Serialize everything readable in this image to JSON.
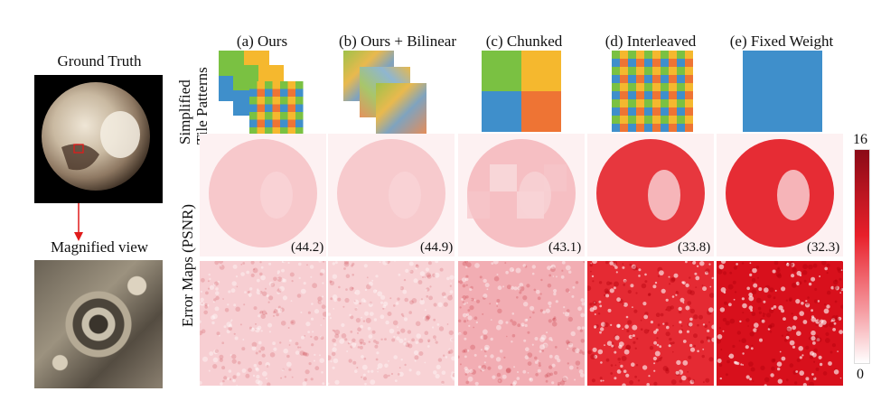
{
  "left_panel": {
    "ground_truth_title": "Ground Truth",
    "magnified_title": "Magnified view"
  },
  "columns": [
    {
      "title": "(a) Ours",
      "psnr": "(44.2)",
      "error_intensity": 0.15
    },
    {
      "title": "(b) Ours + Bilinear",
      "psnr": "(44.9)",
      "error_intensity": 0.13
    },
    {
      "title": "(c) Chunked",
      "psnr": "(43.1)",
      "error_intensity": 0.22
    },
    {
      "title": "(d) Interleaved",
      "psnr": "(33.8)",
      "error_intensity": 0.85
    },
    {
      "title": "(e) Fixed Weight",
      "psnr": "(32.3)",
      "error_intensity": 0.9
    }
  ],
  "row_labels": {
    "tile_patterns_line1": "Simplified",
    "tile_patterns_line2": "Tile Patterns",
    "error_maps": "Error Maps (PSNR)"
  },
  "colorbar": {
    "max_label": "16",
    "min_label": "0"
  },
  "colors": {
    "green": "#7ac142",
    "orange": "#ee7434",
    "yellow": "#f5b82e",
    "blue": "#3f8fcb",
    "error_red": "#e3161f",
    "arrow_red": "#e01b1b"
  }
}
